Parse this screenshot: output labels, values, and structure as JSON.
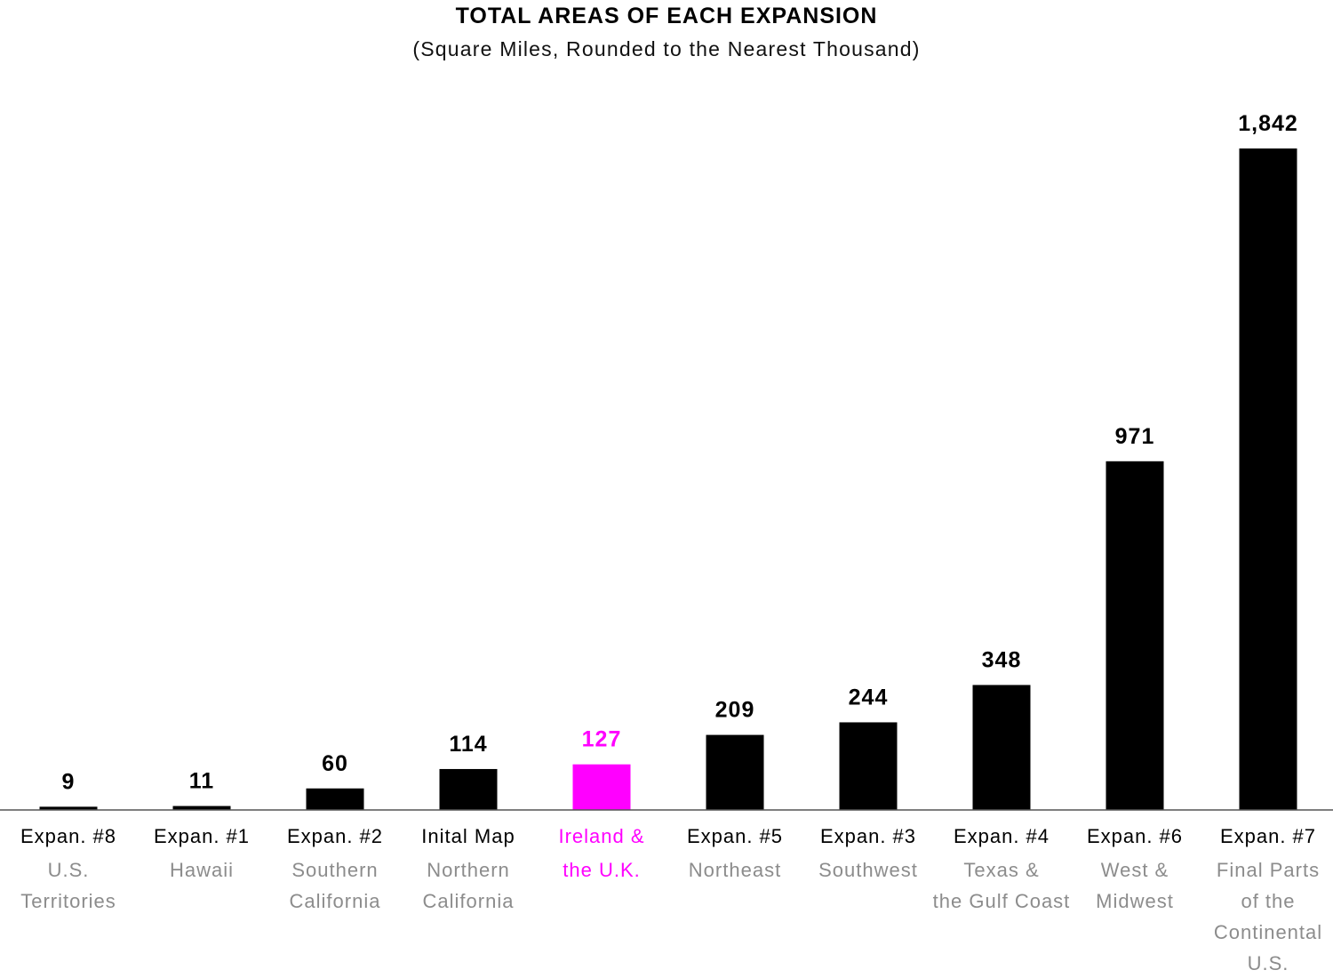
{
  "chart_data": {
    "type": "bar",
    "title": "TOTAL AREAS OF EACH EXPANSION",
    "subtitle": "(Square Miles, Rounded to the Nearest Thousand)",
    "xlabel": "",
    "ylabel": "",
    "ylim": [
      0,
      1842
    ],
    "grid": false,
    "legend": "none",
    "categories": [
      {
        "top": "Expan. #8",
        "sub": [
          "U.S.",
          "Territories"
        ]
      },
      {
        "top": "Expan. #1",
        "sub": [
          "Hawaii"
        ]
      },
      {
        "top": "Expan. #2",
        "sub": [
          "Southern",
          "California"
        ]
      },
      {
        "top": "Inital Map",
        "sub": [
          "Northern",
          "California"
        ]
      },
      {
        "top": "Ireland &",
        "sub": [
          "the U.K."
        ],
        "highlight": true
      },
      {
        "top": "Expan. #5",
        "sub": [
          "Northeast"
        ]
      },
      {
        "top": "Expan. #3",
        "sub": [
          "Southwest"
        ]
      },
      {
        "top": "Expan. #4",
        "sub": [
          "Texas &",
          "the Gulf Coast"
        ]
      },
      {
        "top": "Expan. #6",
        "sub": [
          "West &",
          "Midwest"
        ]
      },
      {
        "top": "Expan. #7",
        "sub": [
          "Final Parts",
          "of the",
          "Continental",
          "U.S."
        ]
      }
    ],
    "values": [
      9,
      11,
      60,
      114,
      127,
      209,
      244,
      348,
      971,
      1842
    ],
    "value_labels": [
      "9",
      "11",
      "60",
      "114",
      "127",
      "209",
      "244",
      "348",
      "971",
      "1,842"
    ],
    "colors": {
      "bar": "#000000",
      "highlight": "#ff00ff",
      "sublabel": "#8c8c8c",
      "axis": "#555555"
    }
  }
}
